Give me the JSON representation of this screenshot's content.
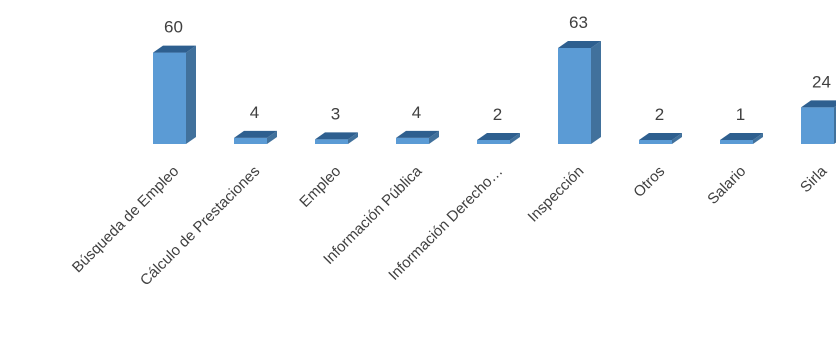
{
  "chart_data": {
    "type": "bar",
    "style": "3d-column",
    "categories": [
      "Búsqueda de Empleo",
      "Cálculo de Prestaciones",
      "Empleo",
      "Información Pública",
      "Información  Derecho…",
      "Inspección",
      "Otros",
      "Salario",
      "Sirla"
    ],
    "values": [
      60,
      4,
      3,
      4,
      2,
      63,
      2,
      1,
      24
    ],
    "data_labels": [
      "60",
      "4",
      "3",
      "4",
      "2",
      "63",
      "2",
      "1",
      "24"
    ],
    "ylim": [
      0,
      63
    ],
    "grid": false,
    "legend": "none",
    "colors": {
      "bar_front": "#5B9BD5",
      "bar_side": "#41719C",
      "bar_top": "#2E5F8F",
      "text": "#404040"
    }
  }
}
